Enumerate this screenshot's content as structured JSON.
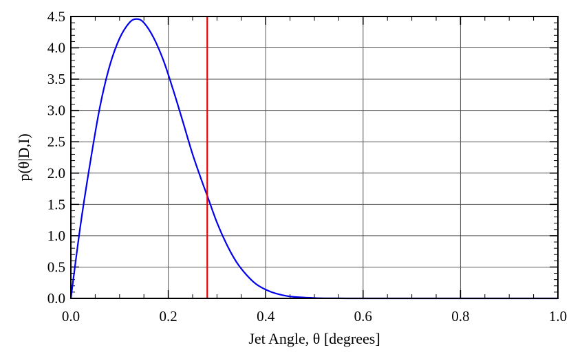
{
  "chart_data": {
    "type": "line",
    "title": "",
    "xlabel": "Jet Angle, θ [degrees]",
    "ylabel": "p(θ|D,I)",
    "xlim": [
      0.0,
      1.0
    ],
    "ylim": [
      0.0,
      4.5
    ],
    "x_ticks": [
      "0.0",
      "0.2",
      "0.4",
      "0.6",
      "0.8",
      "1.0"
    ],
    "y_ticks": [
      "0.0",
      "0.5",
      "1.0",
      "1.5",
      "2.0",
      "2.5",
      "3.0",
      "3.5",
      "4.0",
      "4.5"
    ],
    "grid": true,
    "series": [
      {
        "color": "#0000ee",
        "x": [
          0.0,
          0.02,
          0.04,
          0.06,
          0.08,
          0.1,
          0.12,
          0.135,
          0.15,
          0.17,
          0.19,
          0.21,
          0.23,
          0.25,
          0.27,
          0.28,
          0.3,
          0.32,
          0.34,
          0.36,
          0.38,
          0.4,
          0.42,
          0.45,
          0.5,
          0.55,
          0.6,
          0.7,
          0.8,
          0.9,
          1.0
        ],
        "y": [
          0.0,
          1.18,
          2.18,
          3.07,
          3.72,
          4.15,
          4.4,
          4.46,
          4.4,
          4.16,
          3.8,
          3.33,
          2.82,
          2.3,
          1.85,
          1.64,
          1.21,
          0.86,
          0.58,
          0.38,
          0.23,
          0.14,
          0.08,
          0.03,
          0.006,
          0.001,
          0.0,
          0.0,
          0.0,
          0.0,
          0.0
        ]
      }
    ],
    "vlines": [
      {
        "x": 0.28,
        "color": "#ee0000"
      }
    ]
  }
}
